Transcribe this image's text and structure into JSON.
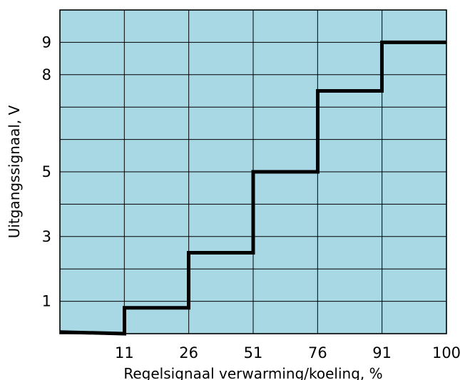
{
  "chart_data": {
    "type": "line",
    "title": "",
    "xlabel": "Regelsignaal verwarming/koeling, %",
    "ylabel": "Uitgangssignaal, V",
    "xlim": [
      0,
      100
    ],
    "ylim": [
      0,
      10
    ],
    "x_tick_labels": [
      "11",
      "26",
      "51",
      "76",
      "91",
      "100"
    ],
    "y_tick_labels": [
      "1",
      "3",
      "5",
      "8",
      "9"
    ],
    "grid": true,
    "background_color": "#a7d8e4",
    "line_color": "#000000",
    "series": [
      {
        "step_points": [
          [
            0,
            0.05
          ],
          [
            16.7,
            0
          ],
          [
            16.7,
            0.8
          ],
          [
            33.3,
            0.8
          ],
          [
            33.3,
            2.5
          ],
          [
            50,
            2.5
          ],
          [
            50,
            5
          ],
          [
            66.7,
            5
          ],
          [
            66.7,
            7.5
          ],
          [
            83.3,
            7.5
          ],
          [
            83.3,
            9
          ],
          [
            100,
            9
          ]
        ]
      }
    ]
  }
}
